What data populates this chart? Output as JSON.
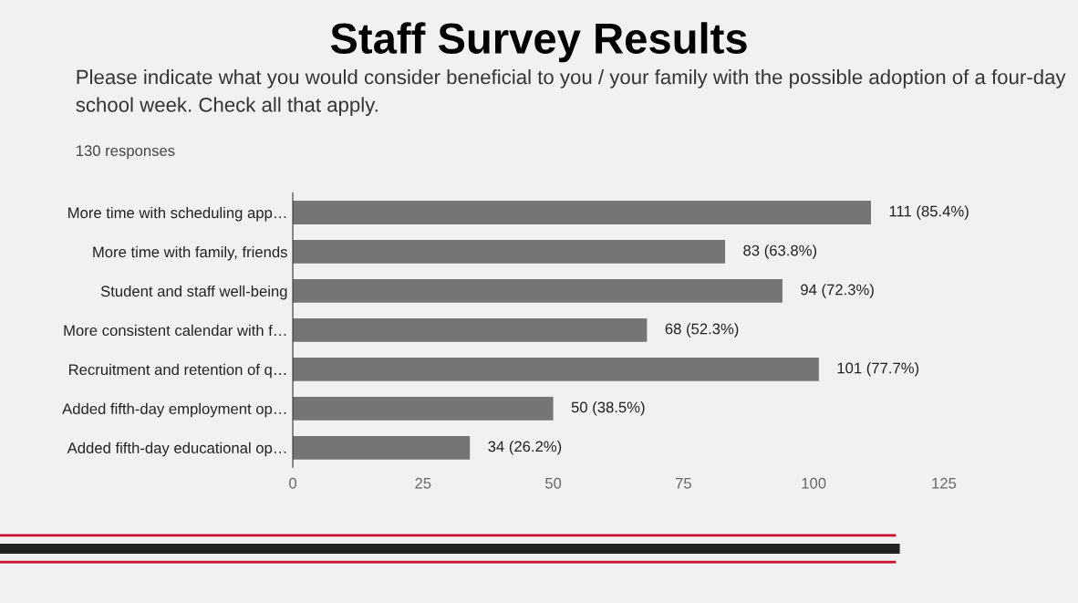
{
  "chart_data": {
    "type": "bar",
    "orientation": "horizontal",
    "title": "Staff Survey Results",
    "subtitle": "Please indicate what you would consider beneficial to you / your family with the possible adoption of a four-day school week. Check all that apply.",
    "annotations": [
      "130 responses"
    ],
    "categories": [
      "More time with scheduling app…",
      "More time with family, friends",
      "Student and staff well-being",
      "More consistent calendar with f…",
      "Recruitment and retention of q…",
      "Added fifth-day employment op…",
      "Added fifth-day educational op…"
    ],
    "values": [
      111,
      83,
      94,
      68,
      101,
      50,
      34
    ],
    "value_labels": [
      "111 (85.4%)",
      "83 (63.8%)",
      "94 (72.3%)",
      "68 (52.3%)",
      "101 (77.7%)",
      "50 (38.5%)",
      "34 (26.2%)"
    ],
    "color": "#757575",
    "xlim": [
      0,
      125
    ],
    "xticks": [
      0,
      25,
      50,
      75,
      100,
      125
    ],
    "grid": false,
    "legend": false
  }
}
